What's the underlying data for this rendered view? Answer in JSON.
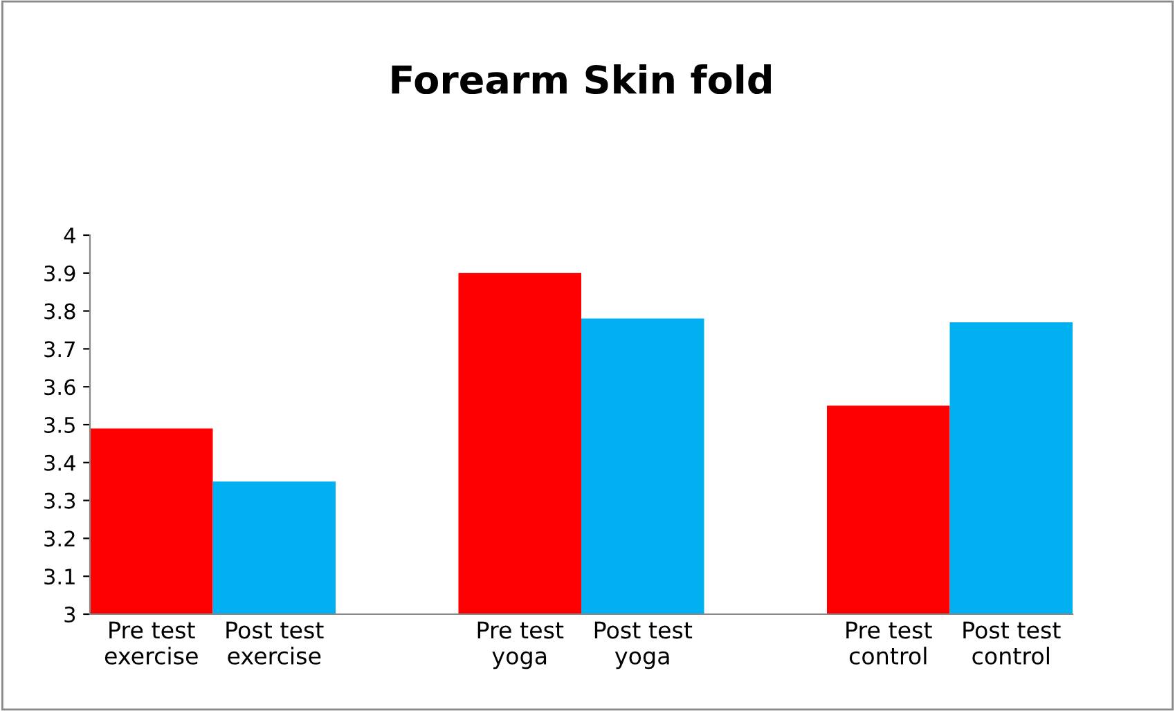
{
  "chart_data": {
    "type": "bar",
    "title": "Forearm Skin fold",
    "categories": [
      "Pre test\nexercise",
      "Post test\nexercise",
      null,
      "Pre test\nyoga",
      "Post test\nyoga",
      null,
      "Pre test\ncontrol",
      "Post test\ncontrol"
    ],
    "values": [
      3.49,
      3.35,
      null,
      3.9,
      3.78,
      null,
      3.55,
      3.77
    ],
    "colors": [
      "#ff0000",
      "#00b0f0",
      "#ffffff",
      "#ff0000",
      "#00b0f0",
      "#ffffff",
      "#ff0000",
      "#00b0f0"
    ],
    "ylim": [
      3,
      4
    ],
    "yticks": [
      3,
      3.1,
      3.2,
      3.3,
      3.4,
      3.5,
      3.6,
      3.7,
      3.8,
      3.9,
      4
    ],
    "grid": false,
    "legend": false
  }
}
